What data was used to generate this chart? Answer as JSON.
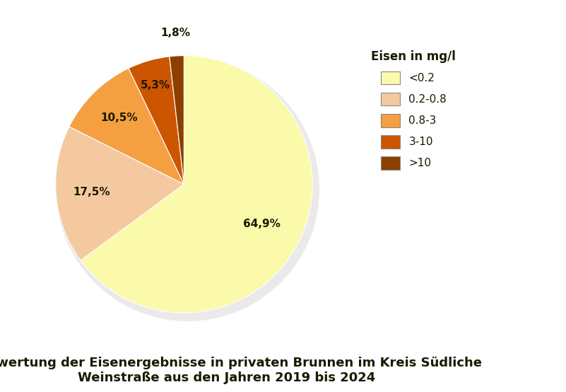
{
  "slices": [
    64.9,
    17.5,
    10.5,
    5.3,
    1.8
  ],
  "labels": [
    "64,9%",
    "17,5%",
    "10,5%",
    "5,3%",
    "1,8%"
  ],
  "colors": [
    "#FAFAAA",
    "#F5C9A0",
    "#F5A040",
    "#CC5500",
    "#8B4000"
  ],
  "legend_labels": [
    "<0.2",
    "0.2-0.8",
    "0.8-3",
    "3-10",
    ">10"
  ],
  "legend_title": "Eisen in mg/l",
  "title_line1": "Auswertung der Eisenergebnisse in privaten Brunnen im Kreis Südliche",
  "title_line2": "Weinstraße aus den Jahren 2019 bis 2024",
  "title_color": "#1a1a00",
  "bg_color": "#ffffff",
  "startangle": 90,
  "label_fontsize": 11,
  "legend_fontsize": 11,
  "legend_title_fontsize": 12,
  "title_fontsize": 13
}
